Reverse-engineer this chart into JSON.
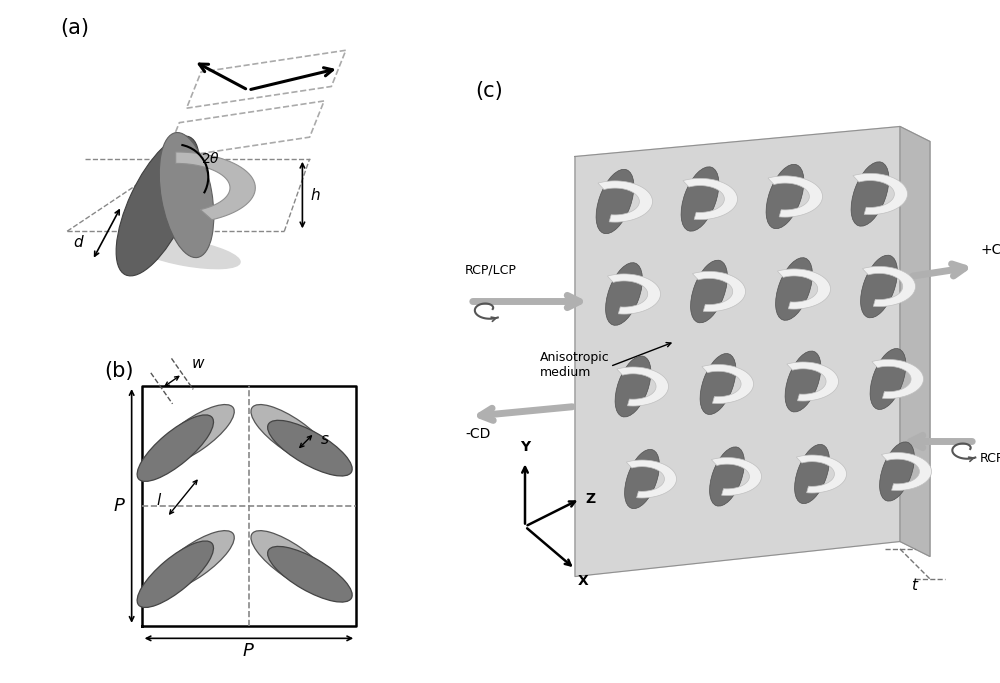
{
  "figure_width": 10.0,
  "figure_height": 6.83,
  "bg_color": "#ffffff",
  "panel_labels": [
    "(a)",
    "(b)",
    "(c)"
  ],
  "panel_label_fontsize": 15,
  "gray_dark": "#555555",
  "gray_mid": "#888888",
  "gray_light": "#bbbbbb",
  "gray_ellipse_dark": "#808080",
  "gray_ellipse_light": "#b0b0b0",
  "gray_bg": "#c8c8c8",
  "slab_color": "#d0d0d0",
  "resonator_dark": "#787878",
  "resonator_light": "#e8e8e8",
  "arrow_color": "#b0b0b0"
}
